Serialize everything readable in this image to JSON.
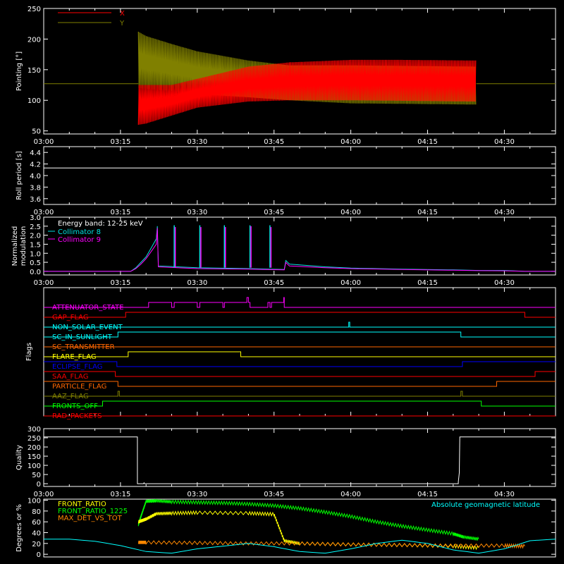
{
  "chart_data": [
    {
      "type": "line",
      "ylabel": "Pointing [°]",
      "ylim": [
        45,
        250
      ],
      "yticks": [
        50,
        100,
        150,
        200,
        250
      ],
      "xlim_min": [
        0,
        100
      ],
      "xticks": [
        "03:00",
        "03:15",
        "03:30",
        "03:45",
        "04:00",
        "04:15",
        "04:30"
      ],
      "legend": [
        {
          "name": "X",
          "color": "#ff0000"
        },
        {
          "name": "Y",
          "color": "#808000"
        }
      ],
      "baseline": 127,
      "envelope": {
        "start_min": 18.5,
        "end_min": 84.5,
        "X": {
          "upper": [
            [
              18.5,
              125
            ],
            [
              25,
              125
            ],
            [
              30,
              135
            ],
            [
              40,
              155
            ],
            [
              48,
              162
            ],
            [
              60,
              166
            ],
            [
              70,
              166
            ],
            [
              84.5,
              165
            ]
          ],
          "lower": [
            [
              18.5,
              60
            ],
            [
              20,
              62
            ],
            [
              25,
              75
            ],
            [
              30,
              88
            ],
            [
              40,
              98
            ],
            [
              48,
              100
            ],
            [
              60,
              100
            ],
            [
              84.5,
              98
            ]
          ]
        },
        "Y": {
          "upper": [
            [
              18.5,
              212
            ],
            [
              20,
              205
            ],
            [
              25,
              192
            ],
            [
              30,
              180
            ],
            [
              40,
              165
            ],
            [
              48,
              157
            ],
            [
              60,
              157
            ],
            [
              84.5,
              155
            ]
          ],
          "lower": [
            [
              18.5,
              120
            ],
            [
              25,
              115
            ],
            [
              30,
              110
            ],
            [
              40,
              105
            ],
            [
              48,
              100
            ],
            [
              60,
              95
            ],
            [
              84.5,
              93
            ]
          ]
        }
      }
    },
    {
      "type": "line",
      "ylabel": "Roll period [s]",
      "ylim": [
        3.5,
        4.5
      ],
      "yticks": [
        3.6,
        3.8,
        4.0,
        4.2,
        4.4
      ],
      "xlim_min": [
        0,
        100
      ],
      "xticks": [
        "03:00",
        "03:15",
        "03:30",
        "03:45",
        "04:00",
        "04:15",
        "04:30"
      ],
      "series": [
        {
          "color": "#ffffff",
          "x": [
            0,
            100
          ],
          "y": [
            4.13,
            4.13
          ]
        }
      ]
    },
    {
      "type": "line",
      "ylabel": "Normalized\nmodulation",
      "ylim": [
        -0.2,
        3.0
      ],
      "yticks": [
        0.0,
        0.5,
        1.0,
        1.5,
        2.0,
        2.5,
        3.0
      ],
      "xlim_min": [
        0,
        100
      ],
      "xticks": [
        "03:00",
        "03:15",
        "03:30",
        "03:45",
        "04:00",
        "04:15",
        "04:30"
      ],
      "legend_title": "Energy band: 12-25 keV",
      "legend": [
        {
          "name": "Collimator 8",
          "color": "#00e0e0"
        },
        {
          "name": "Collimator 9",
          "color": "#ff00ff"
        }
      ],
      "series": [
        {
          "name": "Collimator 8",
          "color": "#00e0e0",
          "x": [
            0,
            17,
            18,
            19,
            20,
            21,
            22,
            22.2,
            22.4,
            30,
            40,
            47,
            47.3,
            48,
            55,
            60,
            70,
            80,
            85,
            90,
            94,
            100
          ],
          "y": [
            0,
            0,
            0.2,
            0.5,
            0.8,
            1.3,
            1.8,
            2.5,
            0.3,
            0.2,
            0.15,
            0.1,
            0.6,
            0.4,
            0.25,
            0.18,
            0.12,
            0.08,
            0.05,
            0.05,
            0,
            0
          ]
        },
        {
          "name": "Collimator 9",
          "color": "#ff00ff",
          "x": [
            0,
            17,
            18,
            19,
            20,
            21,
            22,
            22.2,
            22.4,
            30,
            40,
            47,
            47.3,
            48,
            55,
            60,
            70,
            80,
            85,
            90,
            94,
            100
          ],
          "y": [
            0,
            0,
            0.15,
            0.4,
            0.7,
            1.1,
            1.5,
            2.4,
            0.25,
            0.15,
            0.12,
            0.08,
            0.5,
            0.3,
            0.2,
            0.15,
            0.1,
            0.06,
            0.04,
            0.03,
            0,
            0
          ]
        }
      ],
      "spikes": [
        {
          "x": 25.5,
          "cyan": 2.55,
          "magenta": 2.45
        },
        {
          "x": 30.5,
          "cyan": 2.55,
          "magenta": 2.45
        },
        {
          "x": 35.3,
          "cyan": 2.55,
          "magenta": 2.45
        },
        {
          "x": 40.3,
          "cyan": 2.55,
          "magenta": 2.5
        },
        {
          "x": 44.2,
          "cyan": 2.55,
          "magenta": 2.45
        }
      ]
    },
    {
      "type": "line",
      "ylabel": "Flags",
      "xlim_min": [
        0,
        100
      ],
      "flags": [
        {
          "name": "ATTENUATOR_STATE",
          "color": "#ff00ff",
          "points": [
            [
              0,
              0
            ],
            [
              20.5,
              0
            ],
            [
              20.5,
              1
            ],
            [
              25,
              1
            ],
            [
              25,
              0
            ],
            [
              25.5,
              0
            ],
            [
              25.5,
              1
            ],
            [
              30,
              1
            ],
            [
              30,
              0
            ],
            [
              30.5,
              0
            ],
            [
              30.5,
              1
            ],
            [
              35,
              1
            ],
            [
              35,
              0
            ],
            [
              35.3,
              0
            ],
            [
              35.3,
              1
            ],
            [
              39.7,
              1
            ],
            [
              39.7,
              2
            ],
            [
              40,
              2
            ],
            [
              40,
              1
            ],
            [
              40.3,
              1
            ],
            [
              40.3,
              0
            ],
            [
              43.8,
              0
            ],
            [
              43.8,
              1
            ],
            [
              44.2,
              1
            ],
            [
              44.2,
              0
            ],
            [
              44.5,
              0
            ],
            [
              44.5,
              1
            ],
            [
              46.9,
              1
            ],
            [
              46.9,
              2
            ],
            [
              47,
              2
            ],
            [
              47,
              0
            ],
            [
              100,
              0
            ]
          ]
        },
        {
          "name": "GAP_FLAG",
          "color": "#ff0000",
          "points": [
            [
              0,
              0
            ],
            [
              16,
              0
            ],
            [
              16,
              1
            ],
            [
              94,
              1
            ],
            [
              94,
              0
            ],
            [
              100,
              0
            ]
          ]
        },
        {
          "name": "NON_SOLAR_EVENT",
          "color": "#00ffff",
          "points": [
            [
              0,
              0
            ],
            [
              59.6,
              0
            ],
            [
              59.6,
              1
            ],
            [
              59.8,
              1
            ],
            [
              59.8,
              0
            ],
            [
              100,
              0
            ]
          ]
        },
        {
          "name": "SC_IN_SUNLIGHT",
          "color": "#00ffff",
          "points": [
            [
              0,
              0
            ],
            [
              14.5,
              0
            ],
            [
              14.5,
              1
            ],
            [
              81.5,
              1
            ],
            [
              81.5,
              0
            ],
            [
              100,
              0
            ]
          ]
        },
        {
          "name": "SC_TRANSMITTER",
          "color": "#ff6600",
          "points": [
            [
              0,
              0
            ],
            [
              100,
              0
            ]
          ]
        },
        {
          "name": "FLARE_FLAG",
          "color": "#ffff00",
          "points": [
            [
              0,
              0
            ],
            [
              16.5,
              0
            ],
            [
              16.5,
              1
            ],
            [
              38.5,
              1
            ],
            [
              38.5,
              0
            ],
            [
              100,
              0
            ]
          ]
        },
        {
          "name": "ECLIPSE_FLAG",
          "color": "#0000ff",
          "points": [
            [
              0,
              1
            ],
            [
              14.3,
              1
            ],
            [
              14.3,
              0
            ],
            [
              81.8,
              0
            ],
            [
              81.8,
              1
            ],
            [
              100,
              1
            ]
          ]
        },
        {
          "name": "SAA_FLAG",
          "color": "#ff0000",
          "points": [
            [
              0,
              1
            ],
            [
              14,
              1
            ],
            [
              14,
              0
            ],
            [
              96,
              0
            ],
            [
              96,
              1
            ],
            [
              100,
              1
            ]
          ]
        },
        {
          "name": "PARTICLE_FLAG",
          "color": "#ff6600",
          "points": [
            [
              0,
              1
            ],
            [
              14.5,
              1
            ],
            [
              14.5,
              0
            ],
            [
              88.5,
              0
            ],
            [
              88.5,
              1
            ],
            [
              100,
              1
            ]
          ]
        },
        {
          "name": "AAZ_FLAG",
          "color": "#808000",
          "points": [
            [
              0,
              0
            ],
            [
              14.5,
              0
            ],
            [
              14.5,
              1
            ],
            [
              14.8,
              1
            ],
            [
              14.8,
              0
            ],
            [
              81.5,
              0
            ],
            [
              81.5,
              1
            ],
            [
              81.8,
              1
            ],
            [
              81.8,
              0
            ],
            [
              100,
              0
            ]
          ]
        },
        {
          "name": "FRONTS_OFF",
          "color": "#00ff00",
          "points": [
            [
              0,
              0
            ],
            [
              11.5,
              0
            ],
            [
              11.5,
              1
            ],
            [
              85.5,
              1
            ],
            [
              85.5,
              0
            ],
            [
              100,
              0
            ]
          ]
        },
        {
          "name": "RAD_PACKETS",
          "color": "#ff0000",
          "points": [
            [
              0,
              0
            ],
            [
              100,
              0
            ]
          ]
        }
      ]
    },
    {
      "type": "line",
      "ylabel": "Quality",
      "ylim": [
        -15,
        300
      ],
      "yticks": [
        0,
        50,
        100,
        150,
        200,
        250,
        300
      ],
      "xlim_min": [
        0,
        100
      ],
      "xticks": [
        "03:00",
        "03:15",
        "03:30",
        "03:45",
        "04:00",
        "04:15",
        "04:30"
      ],
      "series": [
        {
          "color": "#ffffff",
          "x": [
            0,
            18.3,
            18.3,
            19.5,
            19.6,
            19.7,
            81,
            81,
            81.2,
            81.3,
            100
          ],
          "y": [
            255,
            255,
            0,
            0,
            5,
            0,
            0,
            10,
            60,
            255,
            255
          ]
        }
      ]
    },
    {
      "type": "line",
      "ylabel": "Degrees or %",
      "ylim": [
        -5,
        102
      ],
      "yticks": [
        0,
        20,
        40,
        60,
        80,
        100
      ],
      "xlim_min": [
        0,
        100
      ],
      "right_note": "Absolute geomagnetic latitude",
      "legend": [
        {
          "name": "FRONT_RATIO",
          "color": "#ffff00"
        },
        {
          "name": "FRONT_RATIO_1225",
          "color": "#00ff00"
        },
        {
          "name": "MAX_DET_VS_TOT",
          "color": "#ff8800"
        }
      ],
      "series": [
        {
          "name": "FRONT_RATIO_1225",
          "color": "#00ff00",
          "x": [
            18.5,
            19,
            20,
            22,
            25,
            30,
            35,
            40,
            45,
            50,
            55,
            60,
            65,
            70,
            75,
            80,
            82,
            85
          ],
          "y": [
            55,
            70,
            98,
            99,
            97,
            96,
            95,
            93,
            90,
            85,
            78,
            70,
            60,
            52,
            45,
            38,
            32,
            28
          ]
        },
        {
          "name": "FRONT_RATIO",
          "color": "#ffff00",
          "x": [
            18.5,
            20,
            22,
            25,
            30,
            40,
            45,
            47,
            50,
            60,
            70,
            80,
            85
          ],
          "y": [
            60,
            65,
            75,
            76,
            77,
            76,
            74,
            25,
            20,
            18,
            17,
            15,
            12
          ]
        },
        {
          "name": "MAX_DET_VS_TOT",
          "color": "#ff8800",
          "x": [
            18.5,
            20,
            30,
            40,
            50,
            60,
            70,
            80,
            90,
            94
          ],
          "y": [
            22,
            22,
            21,
            20,
            20,
            18,
            17,
            16,
            16,
            15
          ]
        },
        {
          "name": "Absolute geomagnetic latitude",
          "color": "#00ffff",
          "x": [
            0,
            5,
            10,
            15,
            20,
            25,
            30,
            35,
            40,
            45,
            50,
            55,
            60,
            65,
            70,
            75,
            80,
            85,
            90,
            95,
            100
          ],
          "y": [
            28,
            28,
            24,
            16,
            5,
            2,
            10,
            15,
            20,
            14,
            5,
            2,
            10,
            20,
            26,
            20,
            8,
            2,
            10,
            25,
            28
          ]
        }
      ]
    }
  ]
}
